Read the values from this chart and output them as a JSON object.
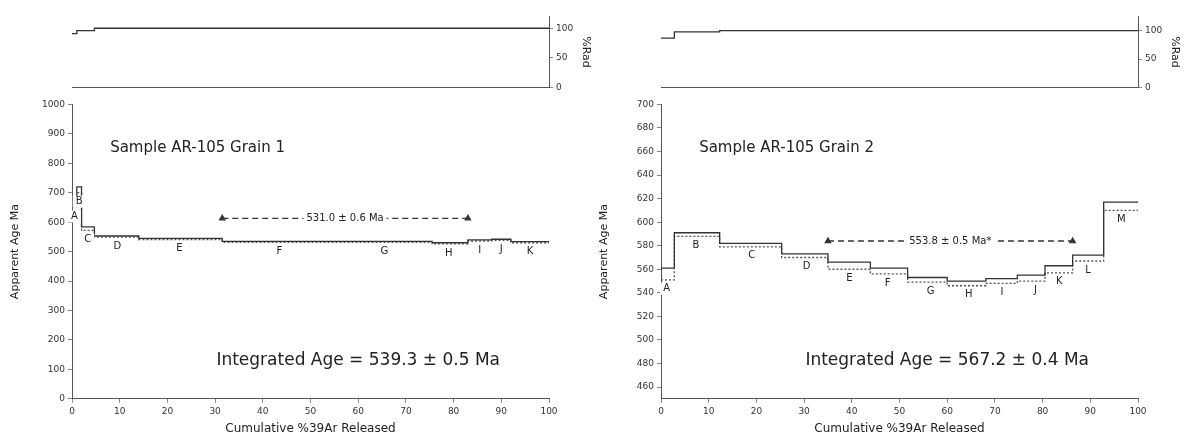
{
  "chart_data": [
    {
      "type": "step",
      "ylabel": "%Rad",
      "xlim": [
        0,
        100
      ],
      "ylim": [
        0,
        120
      ],
      "yticks": [
        0,
        50,
        100
      ],
      "tick_labels": "y",
      "marker": "none",
      "series": [
        {
          "color": "#333333",
          "x": [
            0,
            1,
            4.7,
            100
          ],
          "values": [
            91,
            96,
            100,
            100
          ]
        }
      ]
    },
    {
      "type": "step",
      "title": "Sample AR-105 Grain 1",
      "xlabel": "Cumulative %39Ar Released",
      "ylabel": "Apparent Age Ma",
      "xlim": [
        0,
        100
      ],
      "xticks": [
        0,
        10,
        20,
        30,
        40,
        50,
        60,
        70,
        80,
        90,
        100
      ],
      "ylim": [
        0,
        1000
      ],
      "yticks": [
        0,
        100,
        200,
        300,
        400,
        500,
        600,
        700,
        800,
        900,
        1000
      ],
      "marker": "none",
      "series": [
        {
          "color": "#333333",
          "line_style": "solid",
          "x": [
            0,
            1,
            2,
            4.7,
            14,
            31.5,
            56,
            75.5,
            83,
            88,
            92,
            100
          ],
          "values": [
            680,
            720,
            584,
            553,
            545,
            535,
            535,
            530,
            540,
            542,
            534,
            534
          ]
        },
        {
          "color": "#555555",
          "line_style": "dotted",
          "x": [
            0,
            1,
            2,
            4.7,
            14,
            31.5,
            56,
            75.5,
            83,
            88,
            92,
            100
          ],
          "values": [
            650,
            700,
            572,
            549,
            541,
            531,
            531,
            526,
            536,
            538,
            530,
            530
          ]
        },
        {
          "type": "line",
          "color": "#333333",
          "line_style": "dashed",
          "marker": "triangle",
          "x": [
            31.5,
            83
          ],
          "values": [
            613,
            613
          ]
        }
      ],
      "annotations": [
        "Integrated Age = 539.3 ± 0.5 Ma",
        {
          "text": "531.0 ± 0.6 Ma",
          "x": 57.25,
          "y": 613
        },
        {
          "text": "A",
          "x": 0.5,
          "y": 650
        },
        {
          "text": "B",
          "x": 1.5,
          "y": 700
        },
        {
          "text": "C",
          "x": 3.3,
          "y": 572
        },
        {
          "text": "D",
          "x": 9.5,
          "y": 549
        },
        {
          "text": "E",
          "x": 22.5,
          "y": 541
        },
        {
          "text": "F",
          "x": 43.5,
          "y": 531
        },
        {
          "text": "G",
          "x": 65.5,
          "y": 531
        },
        {
          "text": "H",
          "x": 79,
          "y": 526
        },
        {
          "text": "I",
          "x": 85.5,
          "y": 536
        },
        {
          "text": "J",
          "x": 90,
          "y": 538
        },
        {
          "text": "K",
          "x": 96,
          "y": 530
        }
      ]
    },
    {
      "type": "step",
      "ylabel": "%Rad",
      "xlim": [
        0,
        100
      ],
      "ylim": [
        0,
        125
      ],
      "yticks": [
        0,
        50,
        100
      ],
      "tick_labels": "y",
      "marker": "none",
      "series": [
        {
          "color": "#333333",
          "x": [
            0,
            2.8,
            12.3,
            100
          ],
          "values": [
            87,
            98,
            100,
            100
          ]
        }
      ]
    },
    {
      "type": "step",
      "title": "Sample AR-105 Grain 2",
      "xlabel": "Cumulative %39Ar Released",
      "ylabel": "Apparent Age Ma",
      "xlim": [
        0,
        100
      ],
      "xticks": [
        0,
        10,
        20,
        30,
        40,
        50,
        60,
        70,
        80,
        90,
        100
      ],
      "ylim": [
        450,
        700
      ],
      "yticks": [
        460,
        480,
        500,
        520,
        540,
        560,
        580,
        600,
        620,
        640,
        660,
        680,
        700
      ],
      "marker": "none",
      "series": [
        {
          "color": "#333333",
          "line_style": "solid",
          "x": [
            0,
            2.8,
            12.3,
            25.3,
            35,
            43.9,
            51.7,
            60,
            68.1,
            74.7,
            80.5,
            86.3,
            92.8,
            100
          ],
          "values": [
            561,
            591,
            582,
            573,
            566,
            561,
            553,
            550,
            552,
            555,
            563,
            572,
            617,
            617
          ]
        },
        {
          "color": "#555555",
          "line_style": "dotted",
          "x": [
            0,
            2.8,
            12.3,
            25.3,
            35,
            43.9,
            51.7,
            60,
            68.1,
            74.7,
            80.5,
            86.3,
            92.8,
            100
          ],
          "values": [
            551,
            588,
            579,
            570,
            560,
            556,
            549,
            546,
            548,
            550,
            557,
            567,
            610,
            610
          ]
        },
        {
          "type": "line",
          "color": "#333333",
          "line_style": "dashed",
          "marker": "triangle",
          "x": [
            35,
            86.3
          ],
          "values": [
            584,
            584
          ]
        }
      ],
      "annotations": [
        "Integrated Age = 567.2 ± 0.4 Ma",
        {
          "text": "553.8 ± 0.5 Ma*",
          "x": 60.65,
          "y": 584
        },
        {
          "text": "A",
          "x": 1.2,
          "y": 551
        },
        {
          "text": "B",
          "x": 7.3,
          "y": 588
        },
        {
          "text": "C",
          "x": 19,
          "y": 579
        },
        {
          "text": "D",
          "x": 30.5,
          "y": 570
        },
        {
          "text": "E",
          "x": 39.5,
          "y": 560
        },
        {
          "text": "F",
          "x": 47.5,
          "y": 556
        },
        {
          "text": "G",
          "x": 56.5,
          "y": 549
        },
        {
          "text": "H",
          "x": 64.5,
          "y": 546
        },
        {
          "text": "I",
          "x": 71.5,
          "y": 548
        },
        {
          "text": "J",
          "x": 78.5,
          "y": 550
        },
        {
          "text": "K",
          "x": 83.5,
          "y": 557
        },
        {
          "text": "L",
          "x": 89.5,
          "y": 567
        },
        {
          "text": "M",
          "x": 96.5,
          "y": 610
        }
      ]
    }
  ]
}
